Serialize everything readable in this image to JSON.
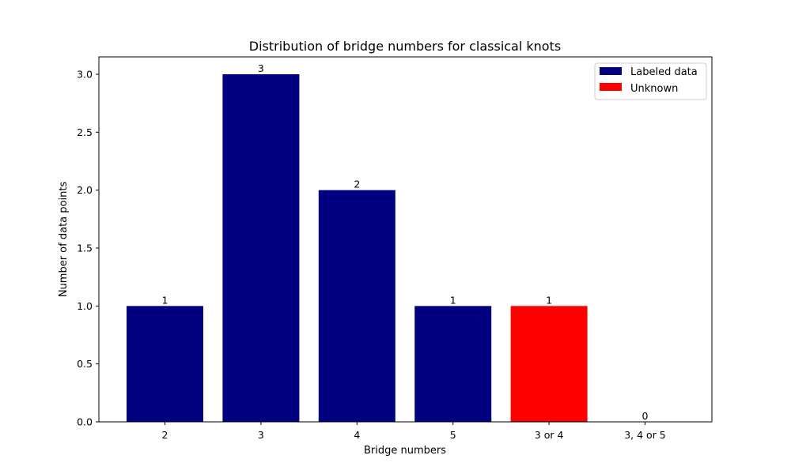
{
  "chart_data": {
    "type": "bar",
    "title": "Distribution of bridge numbers for classical knots",
    "xlabel": "Bridge numbers",
    "ylabel": "Number of data points",
    "categories": [
      "2",
      "3",
      "4",
      "5",
      "3 or 4",
      "3, 4 or 5"
    ],
    "values": [
      1,
      3,
      2,
      1,
      1,
      0
    ],
    "bar_series": [
      "Labeled data",
      "Labeled data",
      "Labeled data",
      "Labeled data",
      "Unknown",
      "Unknown"
    ],
    "data_labels": [
      "1",
      "3",
      "2",
      "1",
      "1",
      "0"
    ],
    "series": [
      {
        "name": "Labeled data",
        "color": "#000080"
      },
      {
        "name": "Unknown",
        "color": "#ff0000"
      }
    ],
    "ylim": [
      0,
      3.15
    ],
    "yticks": [
      0.0,
      0.5,
      1.0,
      1.5,
      2.0,
      2.5,
      3.0
    ],
    "ytick_labels": [
      "0.0",
      "0.5",
      "1.0",
      "1.5",
      "2.0",
      "2.5",
      "3.0"
    ],
    "grid": false,
    "legend_position": "top-right"
  }
}
